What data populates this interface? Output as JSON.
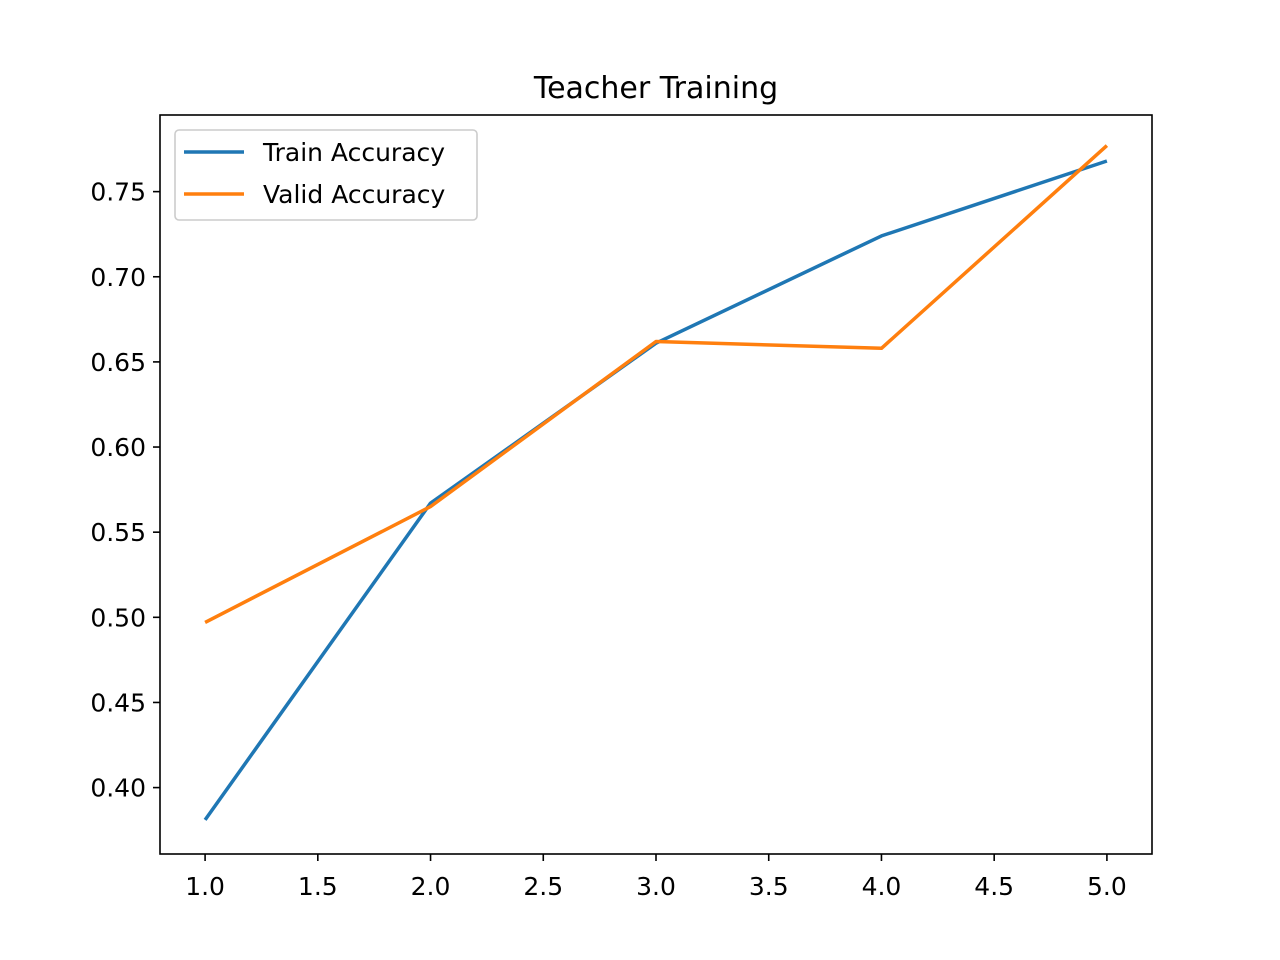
{
  "chart_data": {
    "type": "line",
    "title": "Teacher Training",
    "xlabel": "",
    "ylabel": "",
    "x": [
      1.0,
      2.0,
      3.0,
      4.0,
      5.0
    ],
    "xlim": [
      0.8,
      5.2
    ],
    "ylim": [
      0.361,
      0.795
    ],
    "xticks": [
      1.0,
      1.5,
      2.0,
      2.5,
      3.0,
      3.5,
      4.0,
      4.5,
      5.0
    ],
    "xtick_labels": [
      "1.0",
      "1.5",
      "2.0",
      "2.5",
      "3.0",
      "3.5",
      "4.0",
      "4.5",
      "5.0"
    ],
    "yticks": [
      0.4,
      0.45,
      0.5,
      0.55,
      0.6,
      0.65,
      0.7,
      0.75
    ],
    "ytick_labels": [
      "0.40",
      "0.45",
      "0.50",
      "0.55",
      "0.60",
      "0.65",
      "0.70",
      "0.75"
    ],
    "grid": false,
    "legend_position": "upper-left",
    "series": [
      {
        "name": "Train Accuracy",
        "color": "#1f77b4",
        "values": [
          0.381,
          0.567,
          0.661,
          0.724,
          0.768
        ]
      },
      {
        "name": "Valid Accuracy",
        "color": "#ff7f0e",
        "values": [
          0.497,
          0.565,
          0.662,
          0.658,
          0.777
        ]
      }
    ]
  }
}
